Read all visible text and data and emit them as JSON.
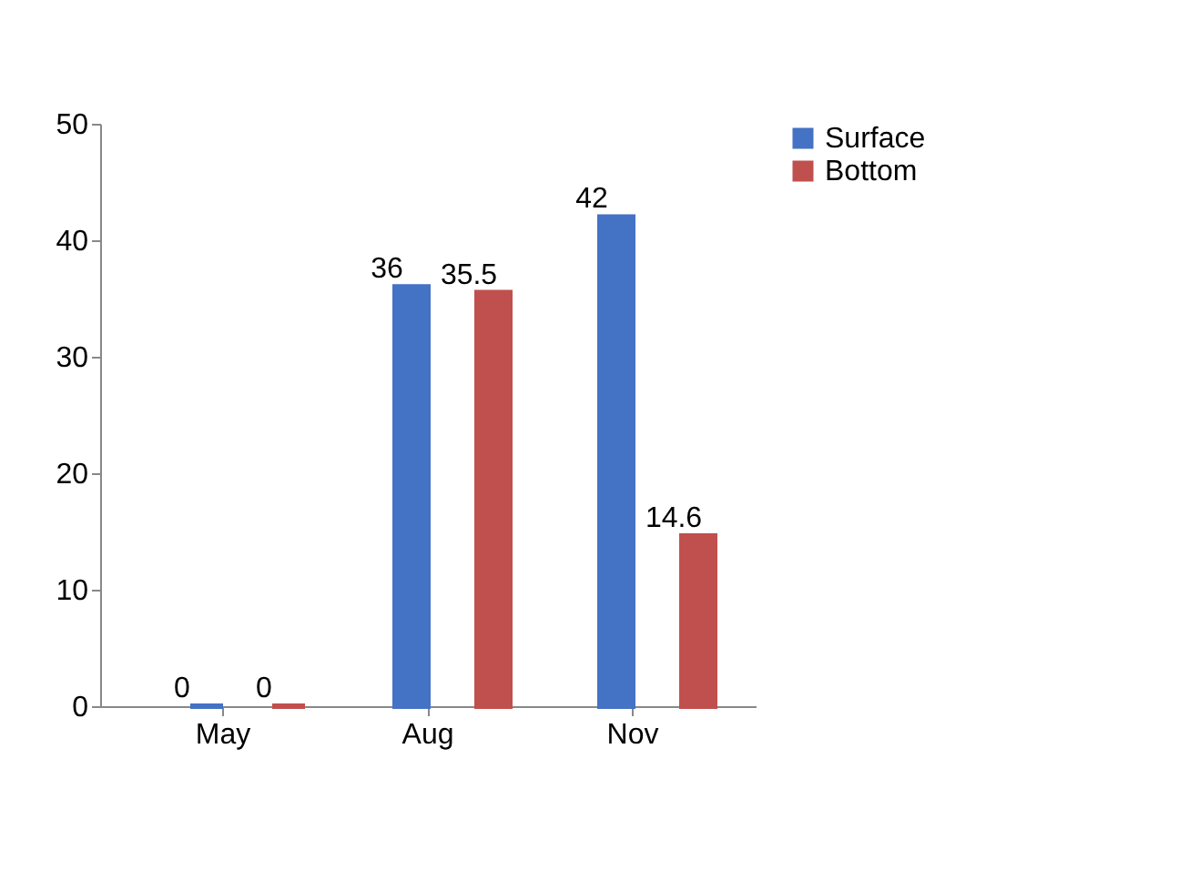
{
  "chart_data": {
    "type": "bar",
    "categories": [
      "May",
      "Aug",
      "Nov"
    ],
    "series": [
      {
        "name": "Surface",
        "color": "#4472c4",
        "values": [
          0,
          36,
          42
        ]
      },
      {
        "name": "Bottom",
        "color": "#c0504d",
        "values": [
          0,
          35.5,
          14.6
        ]
      }
    ],
    "ylim": [
      0,
      50
    ],
    "yticks": [
      0,
      10,
      20,
      30,
      40,
      50
    ],
    "data_labels": true,
    "legend": "right",
    "grid": false
  }
}
